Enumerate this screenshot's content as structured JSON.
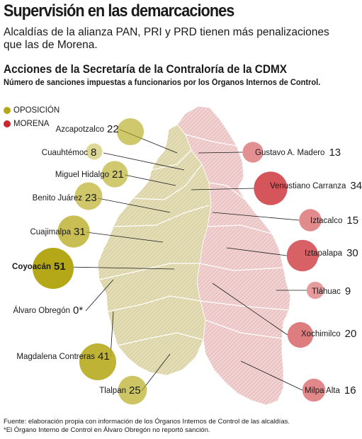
{
  "header": {
    "title": "Supervisión en las demarcaciones",
    "deck": "Alcaldías de la alianza PAN, PRI y PRD tienen más penalizaciones que las de  Morena.",
    "chart_title": "Acciones de la Secretaría de la Contraloría de la CDMX",
    "chart_subtitle": "Número de sanciones impuestas a funcionarios por los Órganos Internos de Control."
  },
  "legend": {
    "opposition_label": "OPOSICIÓN",
    "morena_label": "MORENA"
  },
  "colors": {
    "opposition": "#b5a818",
    "morena": "#c9282d",
    "opposition_map": "#d9d2a3",
    "morena_map": "#e8bcbc"
  },
  "chart_data": {
    "type": "bubble-map",
    "series": [
      {
        "name": "OPOSICIÓN",
        "points": [
          {
            "label": "Azcapotzalco",
            "value": 22
          },
          {
            "label": "Cuauhtémoc",
            "value": 8
          },
          {
            "label": "Miguel Hidalgo",
            "value": 21
          },
          {
            "label": "Benito Juárez",
            "value": 23
          },
          {
            "label": "Cuajimalpa",
            "value": 31
          },
          {
            "label": "Coyoacán",
            "value": 51
          },
          {
            "label": "Álvaro Obregón",
            "value": 0,
            "value_text": "0*"
          },
          {
            "label": "Magdalena Contreras",
            "value": 41
          },
          {
            "label": "Tlalpan",
            "value": 25
          }
        ]
      },
      {
        "name": "MORENA",
        "points": [
          {
            "label": "Gustavo A. Madero",
            "value": 13
          },
          {
            "label": "Venustiano Carranza",
            "value": 34
          },
          {
            "label": "Iztacalco",
            "value": 15
          },
          {
            "label": "Iztapalapa",
            "value": 30
          },
          {
            "label": "Tláhuac",
            "value": 9
          },
          {
            "label": "Xochimilco",
            "value": 20
          },
          {
            "label": "Milpa Alta",
            "value": 16
          }
        ]
      }
    ]
  },
  "footnotes": {
    "source": "Fuente: elaboración propia con información de los Órganos Internos de Control de las alcaldías.",
    "note": "*El Órgano Interno de Control en Álvaro Obregón no reportó sanción."
  }
}
